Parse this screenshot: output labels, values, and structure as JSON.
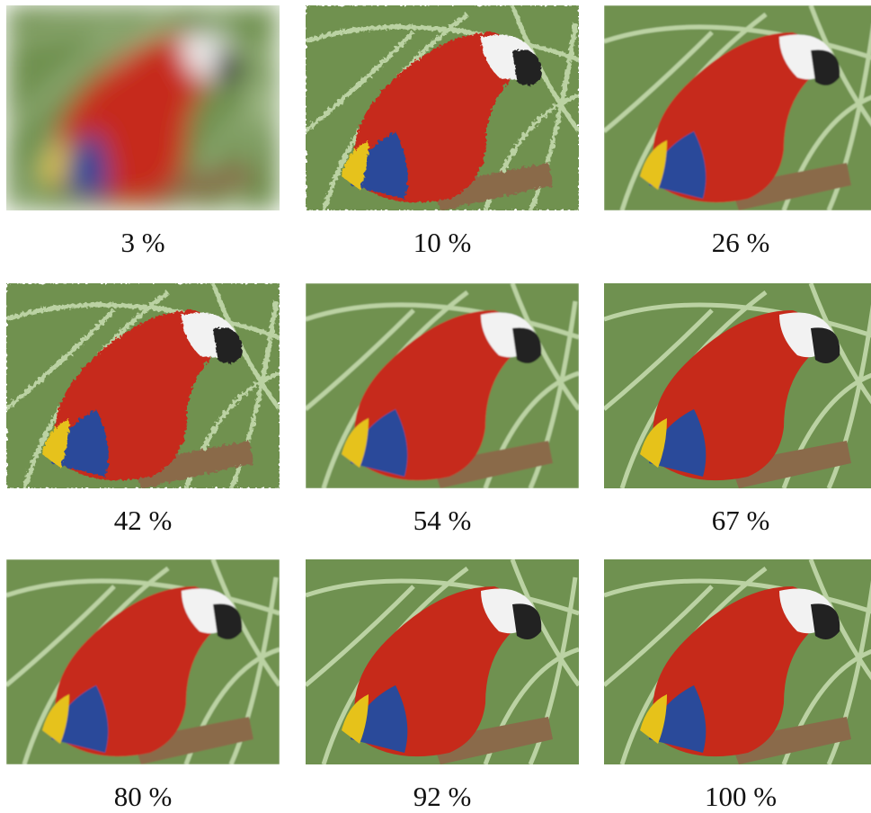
{
  "panels": [
    {
      "label": "3 %"
    },
    {
      "label": "10 %"
    },
    {
      "label": "26 %"
    },
    {
      "label": "42 %"
    },
    {
      "label": "54 %"
    },
    {
      "label": "67 %"
    },
    {
      "label": "80 %"
    },
    {
      "label": "92 %"
    },
    {
      "label": "100 %"
    }
  ]
}
